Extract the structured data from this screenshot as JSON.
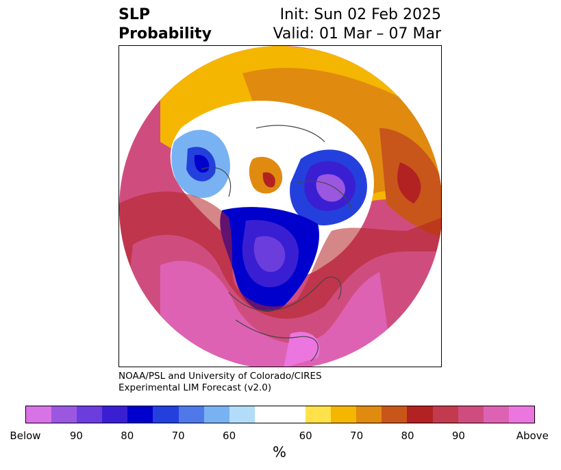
{
  "title": {
    "left_line1": "SLP",
    "left_line2": "Probability",
    "right_line1": "Init: Sun 02 Feb 2025",
    "right_line2": "Valid: 01 Mar – 07 Mar"
  },
  "credit": {
    "line1": "NOAA/PSL and University of Colorado/CIRES",
    "line2": "Experimental LIM Forecast (v2.0)"
  },
  "colorbar": {
    "unit": "%",
    "colors": [
      "#d873e6",
      "#9b57e0",
      "#6b3ddc",
      "#3a1fd2",
      "#0000cd",
      "#2440dc",
      "#4f78e8",
      "#79b2f3",
      "#b2dcf8",
      "#ffffff",
      "#ffe24a",
      "#f4b600",
      "#e08a10",
      "#c8561a",
      "#b22222",
      "#c23a4e",
      "#cf4d7e",
      "#de62b3",
      "#ec76df"
    ],
    "tick_labels": [
      "Below",
      "90",
      "80",
      "70",
      "60",
      "60",
      "70",
      "80",
      "90",
      "Above"
    ]
  },
  "map": {
    "projection": "north-polar-stereographic",
    "field": "SLP probability"
  }
}
